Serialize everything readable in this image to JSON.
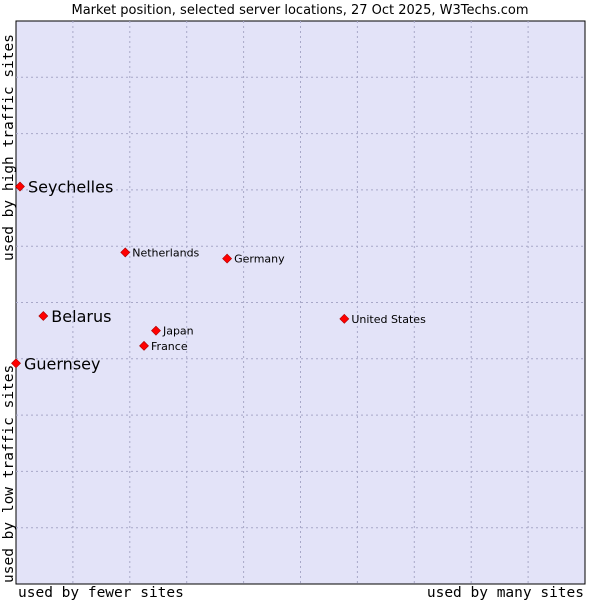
{
  "chart_data": {
    "type": "scatter",
    "title": "Market position, selected server locations, 27 Oct 2025, W3Techs.com",
    "xlabel_left": "used by fewer sites",
    "xlabel_right": "used by many sites",
    "ylabel_bottom": "used by low traffic sites",
    "ylabel_top": "used by high traffic sites",
    "xlim": [
      0,
      100
    ],
    "ylim": [
      0,
      100
    ],
    "grid": true,
    "marker_color": "#ff0000",
    "background_color": "#e3e3f8",
    "points": [
      {
        "label": "Seychelles",
        "x": 0.7,
        "y": 70.6,
        "highlight": true
      },
      {
        "label": "Belarus",
        "x": 4.8,
        "y": 47.6,
        "highlight": true
      },
      {
        "label": "Guernsey",
        "x": 0.0,
        "y": 39.2,
        "highlight": true
      },
      {
        "label": "Netherlands",
        "x": 19.2,
        "y": 58.9,
        "highlight": false
      },
      {
        "label": "Germany",
        "x": 37.1,
        "y": 57.8,
        "highlight": false
      },
      {
        "label": "Japan",
        "x": 24.6,
        "y": 45.0,
        "highlight": false
      },
      {
        "label": "France",
        "x": 22.5,
        "y": 42.3,
        "highlight": false
      },
      {
        "label": "United States",
        "x": 57.7,
        "y": 47.1,
        "highlight": false
      }
    ]
  }
}
